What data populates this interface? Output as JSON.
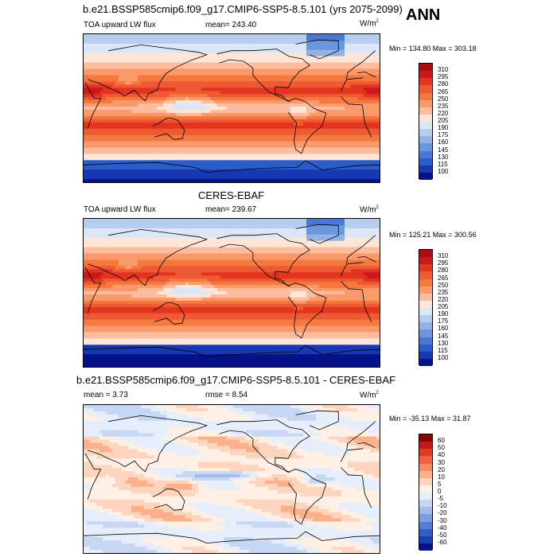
{
  "panels": [
    {
      "title": "b.e21.BSSP585cmip6.f09_g17.CMIP6-SSP5-8.5.101 (yrs 2075-2099)",
      "left": "TOA upward LW flux",
      "center": "mean= 243.40",
      "units": "W/m",
      "units_sup": "2",
      "minmax": "Min = 134.80 Max = 303.18",
      "levels": [
        "310",
        "295",
        "280",
        "265",
        "250",
        "235",
        "220",
        "205",
        "190",
        "175",
        "160",
        "145",
        "130",
        "115",
        "100"
      ],
      "colors": [
        "#a50f15",
        "#cb181d",
        "#e3341f",
        "#ee5a33",
        "#f5793f",
        "#fa9a6a",
        "#fcbca0",
        "#fde6d8",
        "#dbe7f6",
        "#b7cdee",
        "#92b2e6",
        "#6c97de",
        "#4a78d2",
        "#2c5cc7",
        "#1738b0",
        "#07128a"
      ]
    },
    {
      "title": "CERES-EBAF",
      "left": "TOA upward LW flux",
      "center": "mean= 239.67",
      "units": "W/m",
      "units_sup": "2",
      "minmax": "Min = 125.21 Max = 300.56",
      "levels": [
        "310",
        "295",
        "280",
        "265",
        "250",
        "235",
        "220",
        "205",
        "190",
        "175",
        "160",
        "145",
        "130",
        "115",
        "100"
      ],
      "colors": [
        "#a50f15",
        "#cb181d",
        "#e3341f",
        "#ee5a33",
        "#f5793f",
        "#fa9a6a",
        "#fcbca0",
        "#fde6d8",
        "#dbe7f6",
        "#b7cdee",
        "#92b2e6",
        "#6c97de",
        "#4a78d2",
        "#2c5cc7",
        "#1738b0",
        "#07128a"
      ]
    },
    {
      "title": "b.e21.BSSP585cmip6.f09_g17.CMIP6-SSP5-8.5.101 - CERES-EBAF",
      "left": "mean = 3.73",
      "center": "rmse = 8.54",
      "units": "W/m",
      "units_sup": "2",
      "minmax": "Min = -35.13 Max = 31.87",
      "levels": [
        "60",
        "50",
        "40",
        "30",
        "20",
        "10",
        "5",
        "0",
        "-5",
        "-10",
        "-20",
        "-30",
        "-40",
        "-50",
        "-60"
      ],
      "colors": [
        "#8b0000",
        "#c21a1a",
        "#e03a25",
        "#f26441",
        "#f98b62",
        "#fbb08c",
        "#fdd5bf",
        "#fff0e6",
        "#e6eefb",
        "#c7d6f3",
        "#a3bbe9",
        "#7c9ddf",
        "#557dd3",
        "#3060c4",
        "#1840b0",
        "#06148a"
      ]
    }
  ],
  "season": "ANN",
  "chart_data": [
    {
      "type": "heatmap",
      "title": "b.e21.BSSP585cmip6.f09_g17.CMIP6-SSP5-8.5.101 (yrs 2075-2099)",
      "variable": "TOA upward LW flux",
      "units": "W/m2",
      "mean": 243.4,
      "min": 134.8,
      "max": 303.18,
      "contour_levels": [
        100,
        115,
        130,
        145,
        160,
        175,
        190,
        205,
        220,
        235,
        250,
        265,
        280,
        295,
        310
      ],
      "projection": "global cylindrical, Pacific-centered",
      "zonal_profile_approx": [
        {
          "lat": 75,
          "value": 190
        },
        {
          "lat": 60,
          "value": 215
        },
        {
          "lat": 45,
          "value": 235
        },
        {
          "lat": 30,
          "value": 270
        },
        {
          "lat": 15,
          "value": 285
        },
        {
          "lat": 0,
          "value": 255
        },
        {
          "lat": -15,
          "value": 280
        },
        {
          "lat": -30,
          "value": 270
        },
        {
          "lat": -45,
          "value": 225
        },
        {
          "lat": -60,
          "value": 205
        },
        {
          "lat": -75,
          "value": 150
        }
      ]
    },
    {
      "type": "heatmap",
      "title": "CERES-EBAF",
      "variable": "TOA upward LW flux",
      "units": "W/m2",
      "mean": 239.67,
      "min": 125.21,
      "max": 300.56,
      "contour_levels": [
        100,
        115,
        130,
        145,
        160,
        175,
        190,
        205,
        220,
        235,
        250,
        265,
        280,
        295,
        310
      ],
      "projection": "global cylindrical, Pacific-centered",
      "zonal_profile_approx": [
        {
          "lat": 75,
          "value": 185
        },
        {
          "lat": 60,
          "value": 210
        },
        {
          "lat": 45,
          "value": 230
        },
        {
          "lat": 30,
          "value": 270
        },
        {
          "lat": 15,
          "value": 280
        },
        {
          "lat": 0,
          "value": 250
        },
        {
          "lat": -15,
          "value": 280
        },
        {
          "lat": -30,
          "value": 265
        },
        {
          "lat": -45,
          "value": 225
        },
        {
          "lat": -60,
          "value": 200
        },
        {
          "lat": -75,
          "value": 130
        }
      ]
    },
    {
      "type": "heatmap",
      "title": "b.e21.BSSP585cmip6.f09_g17.CMIP6-SSP5-8.5.101 - CERES-EBAF",
      "variable": "difference",
      "units": "W/m2",
      "mean": 3.73,
      "rmse": 8.54,
      "min": -35.13,
      "max": 31.87,
      "contour_levels": [
        -60,
        -50,
        -40,
        -30,
        -20,
        -10,
        -5,
        0,
        5,
        10,
        20,
        30,
        40,
        50,
        60
      ]
    }
  ]
}
